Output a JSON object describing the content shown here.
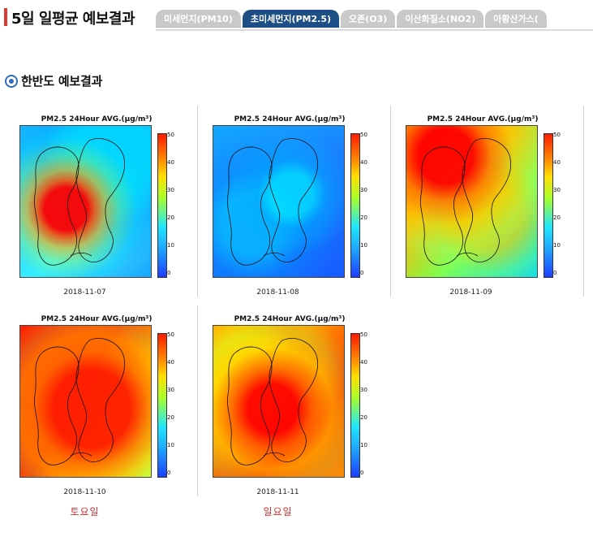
{
  "header": {
    "title": "5일 일평균 예보결과",
    "tabs": [
      {
        "label": "미세먼지(PM10)",
        "active": false
      },
      {
        "label": "초미세먼지(PM2.5)",
        "active": true
      },
      {
        "label": "오존(O3)",
        "active": false
      },
      {
        "label": "이산화질소(NO2)",
        "active": false
      },
      {
        "label": "아황산가스(",
        "active": false
      }
    ]
  },
  "section": {
    "title": "한반도 예보결과"
  },
  "colors": {
    "accent": "#e03a2f",
    "tab_inactive": "#c9c9c9",
    "tab_active": "#1d4f86",
    "weekend_text": "#d32f2f"
  },
  "maps": [
    {
      "title": "PM2.5 24Hour AVG.(μg/m³)",
      "date": "2018-11-07",
      "weekday": "",
      "colorbar_ticks": [
        "50",
        "40",
        "30",
        "20",
        "10",
        "0"
      ]
    },
    {
      "title": "PM2.5 24Hour AVG.(μg/m³)",
      "date": "2018-11-08",
      "weekday": "",
      "colorbar_ticks": [
        "50",
        "40",
        "30",
        "20",
        "10",
        "0"
      ]
    },
    {
      "title": "PM2.5 24Hour AVG.(μg/m³)",
      "date": "2018-11-09",
      "weekday": "",
      "colorbar_ticks": [
        "50",
        "40",
        "30",
        "20",
        "10",
        "0"
      ]
    },
    {
      "title": "PM2.5 24Hour AVG.(μg/m³)",
      "date": "2018-11-10",
      "weekday": "토요일",
      "colorbar_ticks": [
        "50",
        "40",
        "30",
        "20",
        "10",
        "0"
      ]
    },
    {
      "title": "PM2.5 24Hour AVG.(μg/m³)",
      "date": "2018-11-11",
      "weekday": "일요일",
      "colorbar_ticks": [
        "50",
        "40",
        "30",
        "20",
        "10",
        "0"
      ]
    }
  ]
}
